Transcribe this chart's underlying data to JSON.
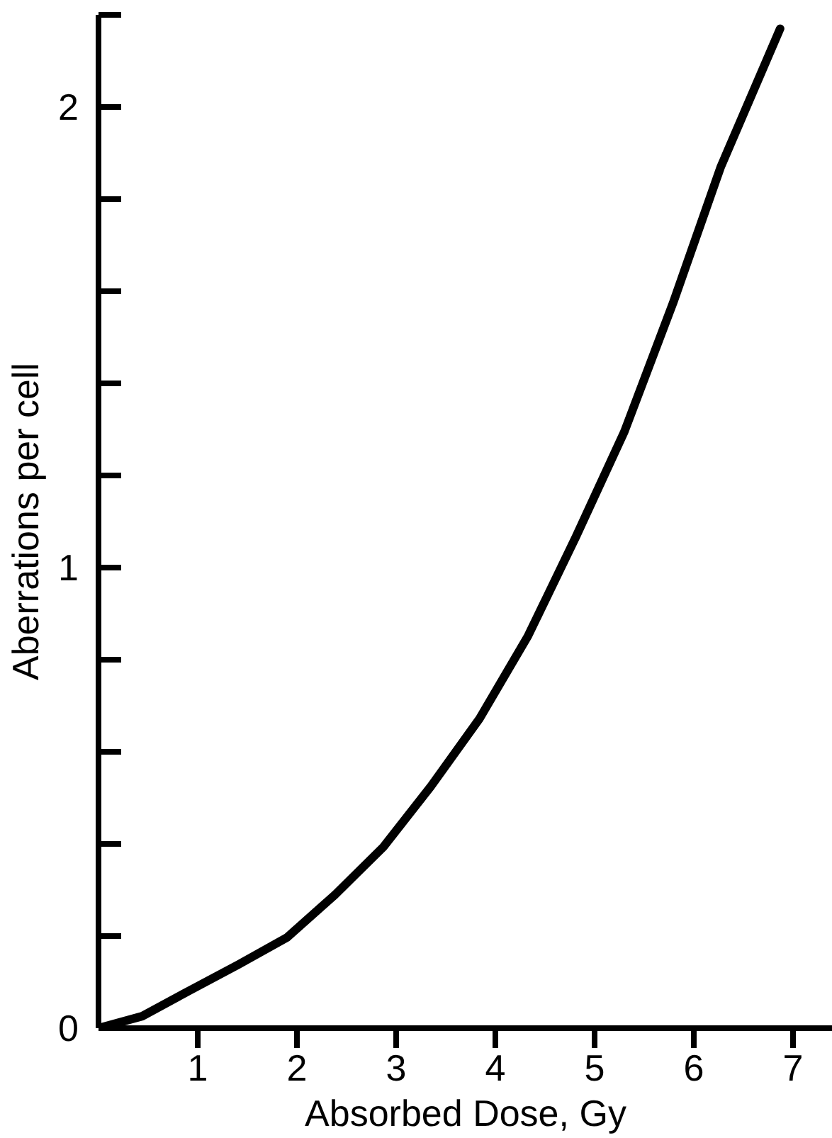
{
  "chart_data": {
    "type": "line",
    "xlabel": "Absorbed Dose, Gy",
    "ylabel": "Aberrations per cell",
    "x": [
      0,
      0.44,
      0.92,
      1.41,
      1.9,
      2.38,
      2.87,
      3.35,
      3.84,
      4.33,
      4.81,
      5.3,
      5.79,
      6.27,
      6.87
    ],
    "series": [
      {
        "color": "#000000",
        "values": [
          0,
          0.026,
          0.082,
          0.138,
          0.197,
          0.289,
          0.393,
          0.525,
          0.672,
          0.852,
          1.066,
          1.295,
          1.574,
          1.869,
          2.17
        ]
      }
    ],
    "xlim": [
      0,
      7.4
    ],
    "ylim": [
      0,
      2.2
    ],
    "xticks": [
      1,
      2,
      3,
      4,
      5,
      6,
      7
    ],
    "yticks": [
      0,
      {
        "value": 0.2,
        "label": null
      },
      {
        "value": 0.4,
        "label": null
      },
      {
        "value": 0.6,
        "label": null
      },
      {
        "value": 0.8,
        "label": null
      },
      1,
      {
        "value": 1.2,
        "label": null
      },
      {
        "value": 1.4,
        "label": null
      },
      {
        "value": 1.6,
        "label": null
      },
      {
        "value": 1.8,
        "label": null
      },
      2,
      {
        "value": 2.2,
        "label": null
      }
    ],
    "grid": false,
    "marker": "none",
    "line_style": "solid"
  }
}
